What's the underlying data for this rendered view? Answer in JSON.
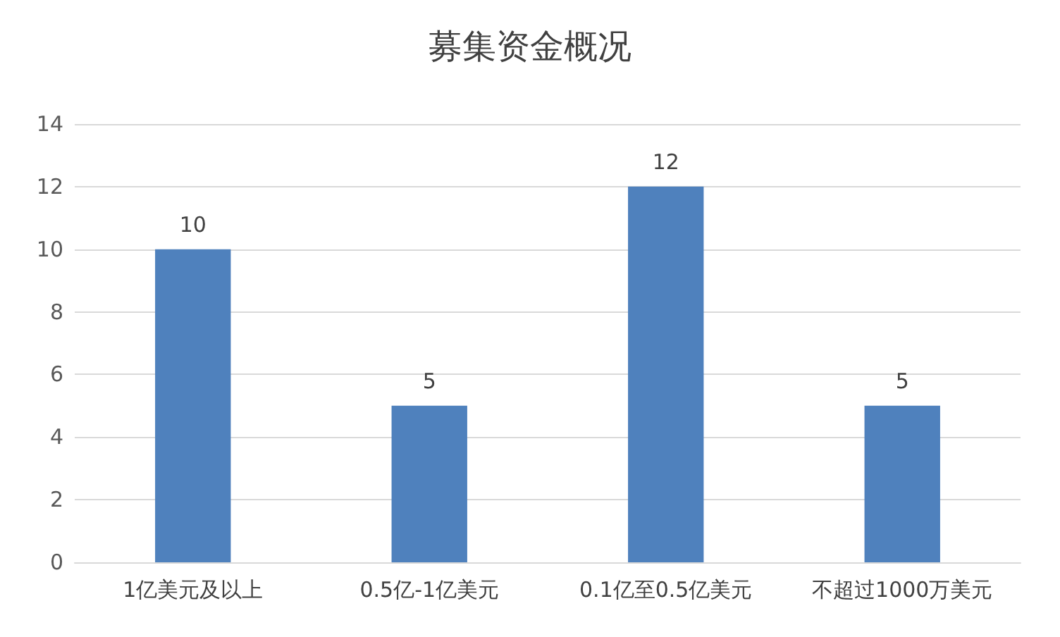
{
  "chart_data": {
    "type": "bar",
    "title": "募集资金概况",
    "categories": [
      "1亿美元及以上",
      "0.5亿-1亿美元",
      "0.1亿至0.5亿美元",
      "不超过1000万美元"
    ],
    "values": [
      10,
      5,
      12,
      5
    ],
    "color": "#4f81bd",
    "ylim": [
      0,
      14
    ],
    "yticks": [
      0,
      2,
      4,
      6,
      8,
      10,
      12,
      14
    ],
    "grid": "y",
    "data_labels": true
  }
}
